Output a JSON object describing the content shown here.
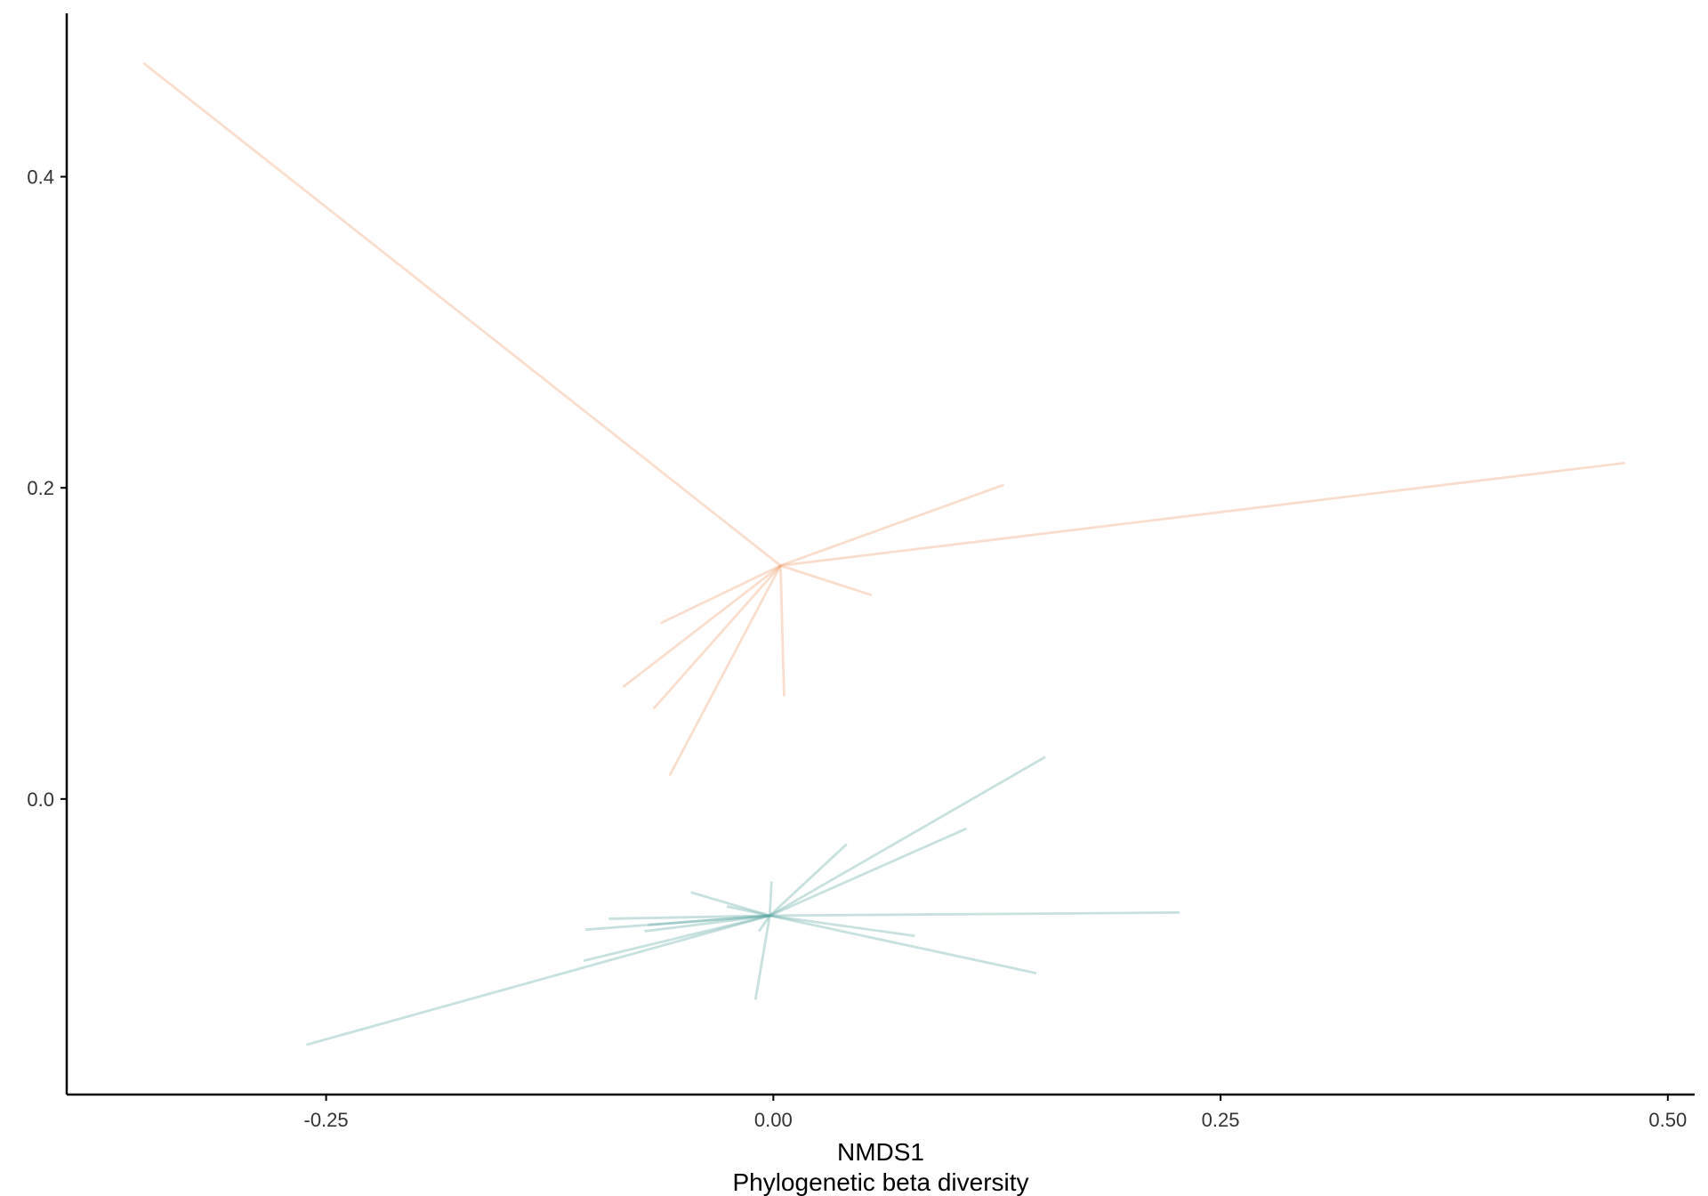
{
  "chart_data": {
    "type": "line",
    "subtype": "spider-plot",
    "title": "",
    "xlabel": "NMDS1",
    "xlabel_sub": "Phylogenetic beta diversity",
    "ylabel": "",
    "xlim": [
      -0.395,
      0.515
    ],
    "ylim": [
      -0.19,
      0.505
    ],
    "x_ticks": [
      {
        "value": -0.25,
        "label": "-0.25"
      },
      {
        "value": 0.0,
        "label": "0.00"
      },
      {
        "value": 0.25,
        "label": "0.25"
      },
      {
        "value": 0.5,
        "label": "0.50"
      }
    ],
    "y_ticks": [
      {
        "value": 0.0,
        "label": "0.0"
      },
      {
        "value": 0.2,
        "label": "0.2"
      },
      {
        "value": 0.4,
        "label": "0.4"
      }
    ],
    "grid": false,
    "legend": "none",
    "groups": [
      {
        "color": "#F0A070",
        "opacity": 0.35,
        "centroid": [
          0.004,
          0.15
        ],
        "points": [
          [
            -0.352,
            0.473
          ],
          [
            0.476,
            0.216
          ],
          [
            0.129,
            0.202
          ],
          [
            0.055,
            0.131
          ],
          [
            -0.063,
            0.113
          ],
          [
            -0.084,
            0.072
          ],
          [
            -0.067,
            0.058
          ],
          [
            0.006,
            0.066
          ],
          [
            -0.058,
            0.015
          ]
        ]
      },
      {
        "color": "#5EAAA3",
        "opacity": 0.35,
        "centroid": [
          -0.002,
          -0.075
        ],
        "points": [
          [
            0.152,
            0.027
          ],
          [
            0.108,
            -0.019
          ],
          [
            0.041,
            -0.029
          ],
          [
            -0.001,
            -0.053
          ],
          [
            -0.046,
            -0.06
          ],
          [
            -0.026,
            -0.069
          ],
          [
            -0.092,
            -0.077
          ],
          [
            0.227,
            -0.073
          ],
          [
            -0.07,
            -0.081
          ],
          [
            -0.105,
            -0.084
          ],
          [
            -0.072,
            -0.085
          ],
          [
            0.079,
            -0.088
          ],
          [
            -0.008,
            -0.085
          ],
          [
            -0.106,
            -0.104
          ],
          [
            0.147,
            -0.112
          ],
          [
            -0.01,
            -0.129
          ],
          [
            -0.261,
            -0.158
          ]
        ]
      }
    ]
  }
}
